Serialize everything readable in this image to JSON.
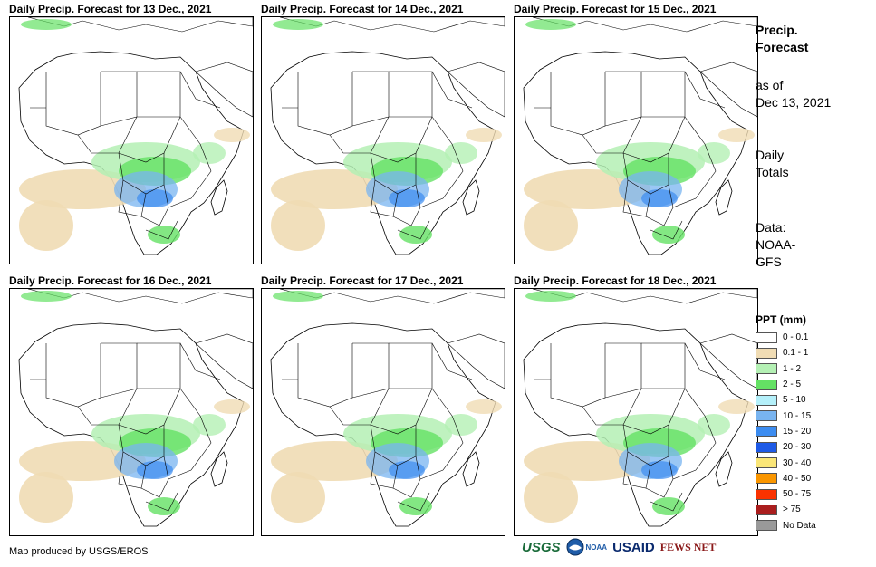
{
  "panels": [
    {
      "title": "Daily Precip. Forecast for 13 Dec., 2021"
    },
    {
      "title": "Daily Precip. Forecast for 14 Dec., 2021"
    },
    {
      "title": "Daily Precip. Forecast for 15 Dec., 2021"
    },
    {
      "title": "Daily Precip. Forecast for 16 Dec., 2021"
    },
    {
      "title": "Daily Precip. Forecast for 17 Dec., 2021"
    },
    {
      "title": "Daily Precip. Forecast for 18 Dec., 2021"
    }
  ],
  "side_info": {
    "title_line1": "Precip.",
    "title_line2": "Forecast",
    "asof_line1": "as of",
    "asof_line2": "Dec 13, 2021",
    "totals_line1": "Daily",
    "totals_line2": "Totals",
    "data_line1": "Data:",
    "data_line2": "NOAA-",
    "data_line3": "GFS"
  },
  "legend": {
    "title": "PPT (mm)",
    "items": [
      {
        "label": "0 - 0.1",
        "color": "#ffffff"
      },
      {
        "label": "0.1 - 1",
        "color": "#f0dcb4"
      },
      {
        "label": "1 - 2",
        "color": "#b4f0b4"
      },
      {
        "label": "2 - 5",
        "color": "#64e164"
      },
      {
        "label": "5 - 10",
        "color": "#b4f0fa"
      },
      {
        "label": "10 - 15",
        "color": "#78b4f0"
      },
      {
        "label": "15 - 20",
        "color": "#3c8cf0"
      },
      {
        "label": "20 - 30",
        "color": "#1e5ae6"
      },
      {
        "label": "30 - 40",
        "color": "#fae678"
      },
      {
        "label": "40 - 50",
        "color": "#fa9600"
      },
      {
        "label": "50 - 75",
        "color": "#fa3200"
      },
      {
        "label": "> 75",
        "color": "#aa1e1e"
      },
      {
        "label": "No Data",
        "color": "#999999"
      }
    ]
  },
  "footer": {
    "credit": "Map produced by USGS/EROS",
    "logos": [
      "USGS",
      "NOAA",
      "USAID",
      "FEWS NET"
    ]
  }
}
